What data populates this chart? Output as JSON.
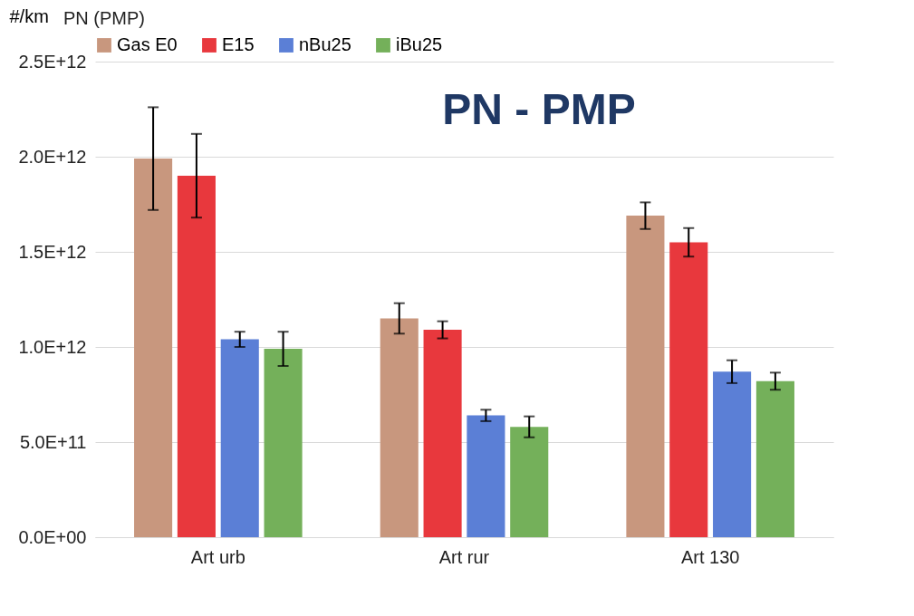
{
  "chart_data": {
    "type": "bar",
    "title": "PN - PMP",
    "ylabel": "#/km",
    "annotations": [
      "PN (PMP)"
    ],
    "categories": [
      "Art urb",
      "Art rur",
      "Art 130"
    ],
    "series": [
      {
        "name": "Gas E0",
        "color": "#c8977e",
        "values": [
          1990000000000.0,
          1150000000000.0,
          1690000000000.0
        ],
        "errors": [
          270000000000.0,
          80000000000.0,
          70000000000.0
        ]
      },
      {
        "name": "E15",
        "color": "#e8383d",
        "values": [
          1900000000000.0,
          1090000000000.0,
          1550000000000.0
        ],
        "errors": [
          220000000000.0,
          45000000000.0,
          75000000000.0
        ]
      },
      {
        "name": "nBu25",
        "color": "#5b7fd6",
        "values": [
          1040000000000.0,
          640000000000.0,
          870000000000.0
        ],
        "errors": [
          40000000000.0,
          30000000000.0,
          60000000000.0
        ]
      },
      {
        "name": "iBu25",
        "color": "#74b05a",
        "values": [
          990000000000.0,
          580000000000.0,
          820000000000.0
        ],
        "errors": [
          90000000000.0,
          55000000000.0,
          45000000000.0
        ]
      }
    ],
    "ylim": [
      0,
      2500000000000.0
    ],
    "yticks": [
      {
        "value": 0,
        "label": "0.0E+00"
      },
      {
        "value": 500000000000.0,
        "label": "5.0E+11"
      },
      {
        "value": 1000000000000.0,
        "label": "1.0E+12"
      },
      {
        "value": 1500000000000.0,
        "label": "1.5E+12"
      },
      {
        "value": 2000000000000.0,
        "label": "2.0E+12"
      },
      {
        "value": 2500000000000.0,
        "label": "2.5E+12"
      }
    ],
    "grid": "y",
    "legend": "top"
  }
}
